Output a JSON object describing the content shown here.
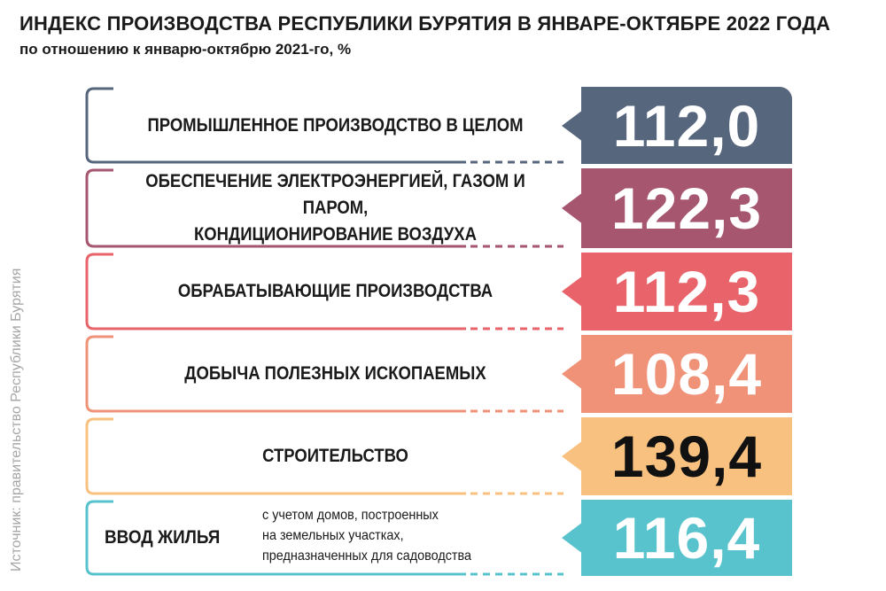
{
  "title": "ИНДЕКС ПРОИЗВОДСТВА РЕСПУБЛИКИ БУРЯТИЯ В ЯНВАРЕ-ОКТЯБРЕ 2022 ГОДА",
  "subtitle": "по отношению к январю-октябрю 2021-го, %",
  "source": "Источник: правительство Республики Бурятия",
  "chart_data": {
    "type": "table",
    "title": "ИНДЕКС ПРОИЗВОДСТВА РЕСПУБЛИКИ БУРЯТИЯ В ЯНВАРЕ-ОКТЯБРЕ 2022 ГОДА",
    "subtitle": "по отношению к январю-октябрю 2021-го, %",
    "rows": [
      {
        "label": "ПРОМЫШЛЕННОЕ ПРОИЗВОДСТВО В ЦЕЛОМ",
        "value_text": "112,0",
        "value": 112.0,
        "color": "#56667d"
      },
      {
        "label_line1": "ОБЕСПЕЧЕНИЕ ЭЛЕКТРОЭНЕРГИЕЙ, ГАЗОМ И ПАРОМ,",
        "label_line2": "КОНДИЦИОНИРОВАНИЕ ВОЗДУХА",
        "value_text": "122,3",
        "value": 122.3,
        "color": "#a6566f"
      },
      {
        "label": "ОБРАБАТЫВАЮЩИЕ ПРОИЗВОДСТВА",
        "value_text": "112,3",
        "value": 112.3,
        "color": "#e9636a"
      },
      {
        "label": "ДОБЫЧА ПОЛЕЗНЫХ ИСКОПАЕМЫХ",
        "value_text": "108,4",
        "value": 108.4,
        "color": "#ef9278"
      },
      {
        "label": "СТРОИТЕЛЬСТВО",
        "value_text": "139,4",
        "value": 139.4,
        "color": "#f9c17f"
      },
      {
        "label": "ВВОД ЖИЛЬЯ",
        "note_line1": "с учетом домов, построенных",
        "note_line2": "на земельных участках,",
        "note_line3": "предназначенных для садоводства",
        "value_text": "116,4",
        "value": 116.4,
        "color": "#58c3cd"
      }
    ]
  }
}
